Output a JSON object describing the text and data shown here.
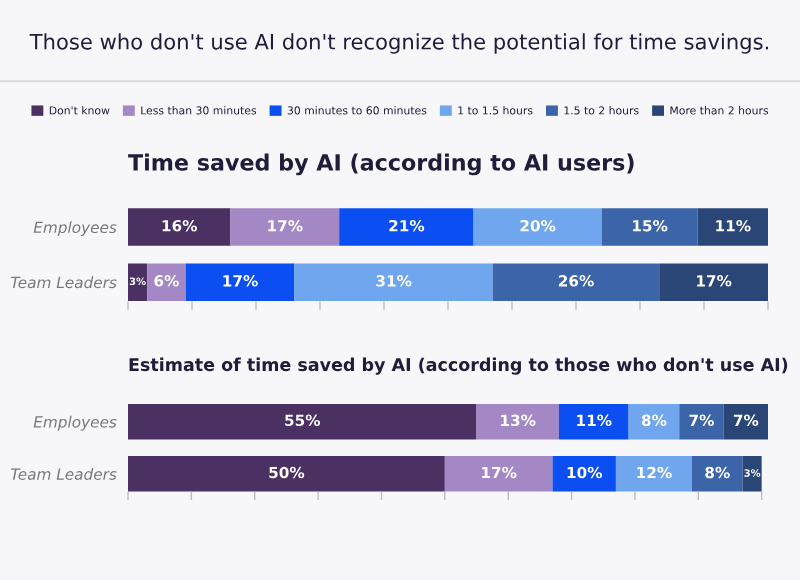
{
  "chart_data": [
    {
      "type": "bar",
      "orientation": "horizontal",
      "stacked": true,
      "title": "Those who don't use AI don't recognize the potential for time savings.",
      "subtitle": "Time saved by AI (according to AI users)",
      "categories": [
        "Employees",
        "Team Leaders"
      ],
      "xlim": [
        0,
        100
      ],
      "xticks": [
        {
          "value": 0,
          "label": null
        },
        {
          "value": 10,
          "label": null
        },
        {
          "value": 20,
          "label": null
        },
        {
          "value": 30,
          "label": null
        },
        {
          "value": 40,
          "label": null
        },
        {
          "value": 50,
          "label": null
        },
        {
          "value": 60,
          "label": null
        },
        {
          "value": 70,
          "label": null
        },
        {
          "value": 80,
          "label": null
        },
        {
          "value": 90,
          "label": null
        },
        {
          "value": 100,
          "label": null
        }
      ],
      "tick_labels": "y",
      "legend": "top",
      "grid": false,
      "series": [
        {
          "name": "Don't know",
          "color": "#4b3162",
          "values": [
            16,
            3
          ],
          "value_labels": [
            "16%",
            "3%"
          ]
        },
        {
          "name": "Less than 30 minutes",
          "color": "#a488c6",
          "values": [
            17,
            6
          ],
          "value_labels": [
            "17%",
            "6%"
          ]
        },
        {
          "name": "30 minutes to 60 minutes",
          "color": "#0b4ff2",
          "values": [
            21,
            17
          ],
          "value_labels": [
            "21%",
            "17%"
          ]
        },
        {
          "name": "1 to 1.5 hours",
          "color": "#6fa6ee",
          "values": [
            20,
            31
          ],
          "value_labels": [
            "20%",
            "31%"
          ]
        },
        {
          "name": "1.5 to 2 hours",
          "color": "#3b64a9",
          "values": [
            15,
            26
          ],
          "value_labels": [
            "15%",
            "26%"
          ]
        },
        {
          "name": "More than 2 hours",
          "color": "#2a4677",
          "values": [
            11,
            17
          ],
          "value_labels": [
            "11%",
            "17%"
          ]
        }
      ]
    },
    {
      "type": "bar",
      "orientation": "horizontal",
      "stacked": true,
      "title": "Estimate of time saved by AI (according to those who don't use AI)",
      "categories": [
        "Employees",
        "Team Leaders"
      ],
      "xlim": [
        0,
        101
      ],
      "xticks": [
        {
          "value": 0,
          "label": null
        },
        {
          "value": 10,
          "label": null
        },
        {
          "value": 20,
          "label": null
        },
        {
          "value": 30,
          "label": null
        },
        {
          "value": 40,
          "label": null
        },
        {
          "value": 50,
          "label": null
        },
        {
          "value": 60,
          "label": null
        },
        {
          "value": 70,
          "label": null
        },
        {
          "value": 80,
          "label": null
        },
        {
          "value": 90,
          "label": null
        },
        {
          "value": 100,
          "label": null
        }
      ],
      "tick_labels": "y",
      "grid": false,
      "series": [
        {
          "color": "#4b3162",
          "values": [
            55,
            50
          ],
          "value_labels": [
            "55%",
            "50%"
          ]
        },
        {
          "color": "#a488c6",
          "values": [
            13,
            17
          ],
          "value_labels": [
            "13%",
            "17%"
          ]
        },
        {
          "color": "#0b4ff2",
          "values": [
            11,
            10
          ],
          "value_labels": [
            "11%",
            "10%"
          ]
        },
        {
          "color": "#6fa6ee",
          "values": [
            8,
            12
          ],
          "value_labels": [
            "8%",
            "12%"
          ]
        },
        {
          "color": "#3b64a9",
          "values": [
            7,
            8
          ],
          "value_labels": [
            "7%",
            "8%"
          ]
        },
        {
          "color": "#2a4677",
          "values": [
            7,
            3
          ],
          "value_labels": [
            "7%",
            "3%"
          ]
        }
      ]
    }
  ]
}
